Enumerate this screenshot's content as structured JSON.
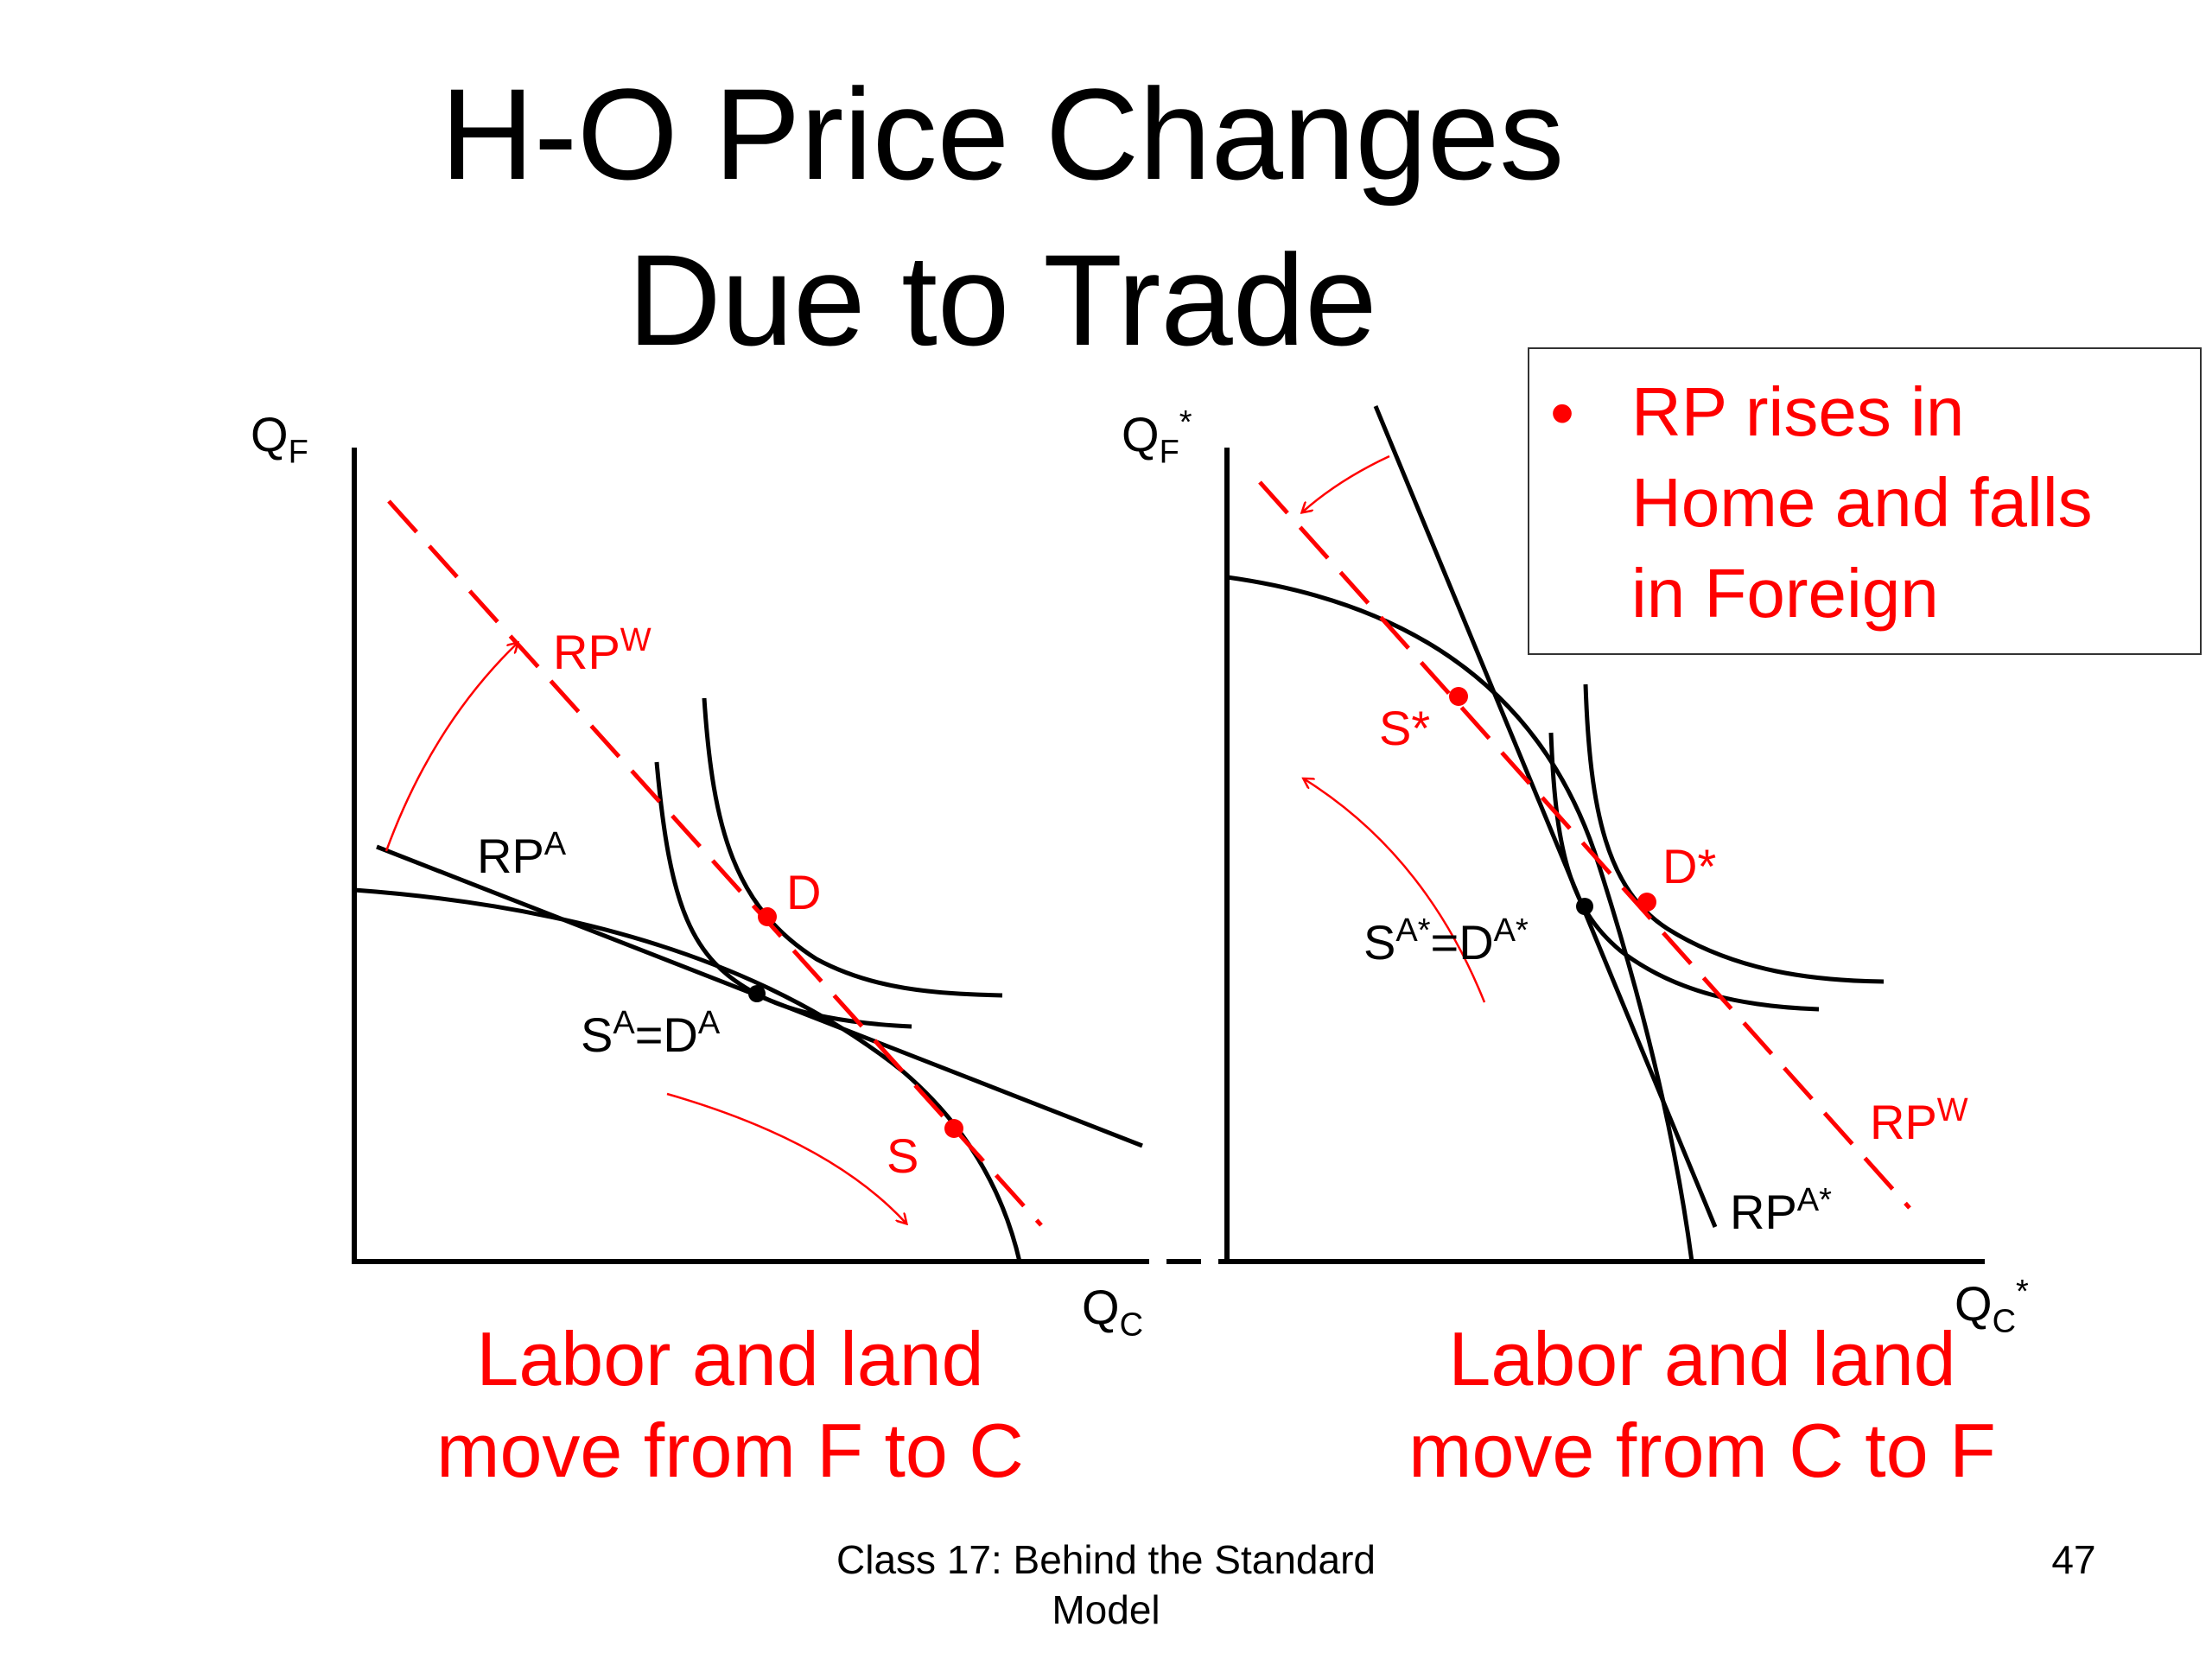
{
  "title": {
    "line1": "H-O Price Changes",
    "line2": "Due to Trade"
  },
  "note": {
    "bullet": "•",
    "lines": [
      "RP rises in",
      "Home and falls",
      "in Foreign"
    ]
  },
  "home": {
    "y_axis_label": "Q",
    "y_axis_sub": "F",
    "x_axis_label": "Q",
    "x_axis_sub": "C",
    "rpw_label": "RP",
    "rpw_sup": "W",
    "rpa_label": "RP",
    "rpa_sup": "A",
    "autarky_label": {
      "s": "S",
      "s_sup": "A",
      "eq": "=D",
      "d_sup": "A"
    },
    "d_label": "D",
    "s_label": "S"
  },
  "foreign": {
    "y_axis_label": "Q",
    "y_axis_sub": "F",
    "y_axis_star": "*",
    "x_axis_label": "Q",
    "x_axis_sub": "C",
    "x_axis_star": "*",
    "rpw_label": "RP",
    "rpw_sup": "W",
    "rpa_label": "RP",
    "rpa_sup": "A*",
    "autarky_label": {
      "s": "S",
      "s_sup": "A*",
      "eq": "=D",
      "d_sup": "A*"
    },
    "d_label": "D*",
    "s_label": "S*"
  },
  "captions": {
    "home": [
      "Labor and land",
      "move from F to C"
    ],
    "foreign": [
      "Labor and land",
      "move from C to F"
    ]
  },
  "footer": {
    "lines": [
      "Class 17:  Behind the Standard",
      "Model"
    ],
    "page": "47"
  },
  "colors": {
    "accent": "#ff0000",
    "ink": "#000000"
  }
}
